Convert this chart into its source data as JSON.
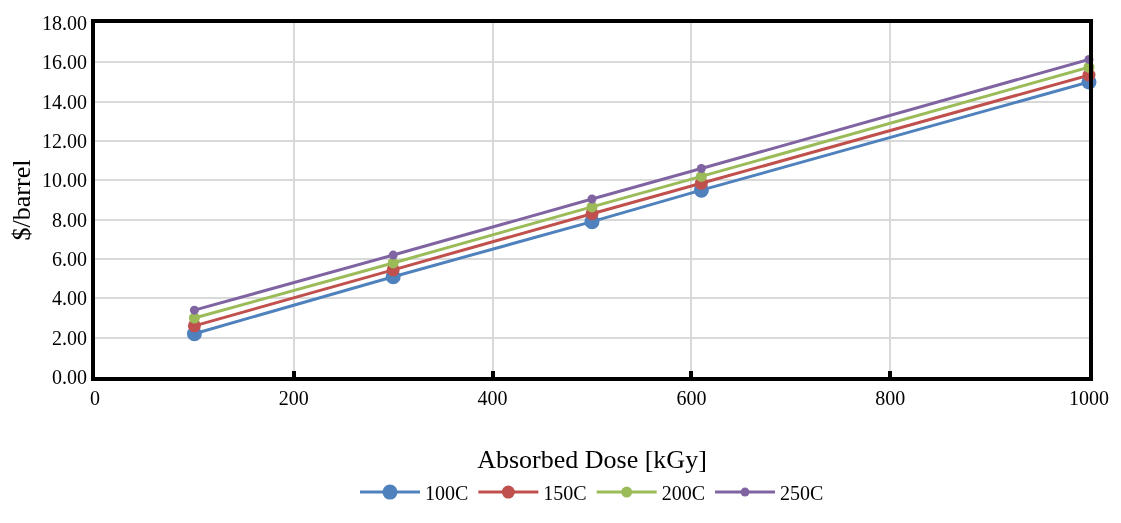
{
  "chart_data": {
    "type": "line",
    "xlabel": "Absorbed Dose [kGy]",
    "ylabel": "$/barrel",
    "x": [
      100,
      300,
      500,
      610,
      1000
    ],
    "series": [
      {
        "name": "100C",
        "color": "#4f81bd",
        "values": [
          2.2,
          5.1,
          7.9,
          9.5,
          15.0
        ]
      },
      {
        "name": "150C",
        "color": "#c0504d",
        "values": [
          2.6,
          5.45,
          8.3,
          9.85,
          15.35
        ]
      },
      {
        "name": "200C",
        "color": "#9bbb59",
        "values": [
          3.0,
          5.8,
          8.65,
          10.2,
          15.75
        ]
      },
      {
        "name": "250C",
        "color": "#8064a2",
        "values": [
          3.4,
          6.2,
          9.05,
          10.6,
          16.15
        ]
      }
    ],
    "xlim": [
      0,
      1000
    ],
    "xticks": [
      0,
      200,
      400,
      600,
      800,
      1000
    ],
    "ylim": [
      0,
      18
    ],
    "yticks": [
      {
        "value": 0,
        "label": "0.00"
      },
      {
        "value": 2,
        "label": "2.00"
      },
      {
        "value": 4,
        "label": "4.00"
      },
      {
        "value": 6,
        "label": "6.00"
      },
      {
        "value": 8,
        "label": "8.00"
      },
      {
        "value": 10,
        "label": "10.00"
      },
      {
        "value": 12,
        "label": "12.00"
      },
      {
        "value": 14,
        "label": "14.00"
      },
      {
        "value": 16,
        "label": "16.00"
      },
      {
        "value": 18,
        "label": "18.00"
      }
    ],
    "grid": true,
    "legend": "bottom",
    "marker": "circle",
    "line_style": "solid"
  }
}
